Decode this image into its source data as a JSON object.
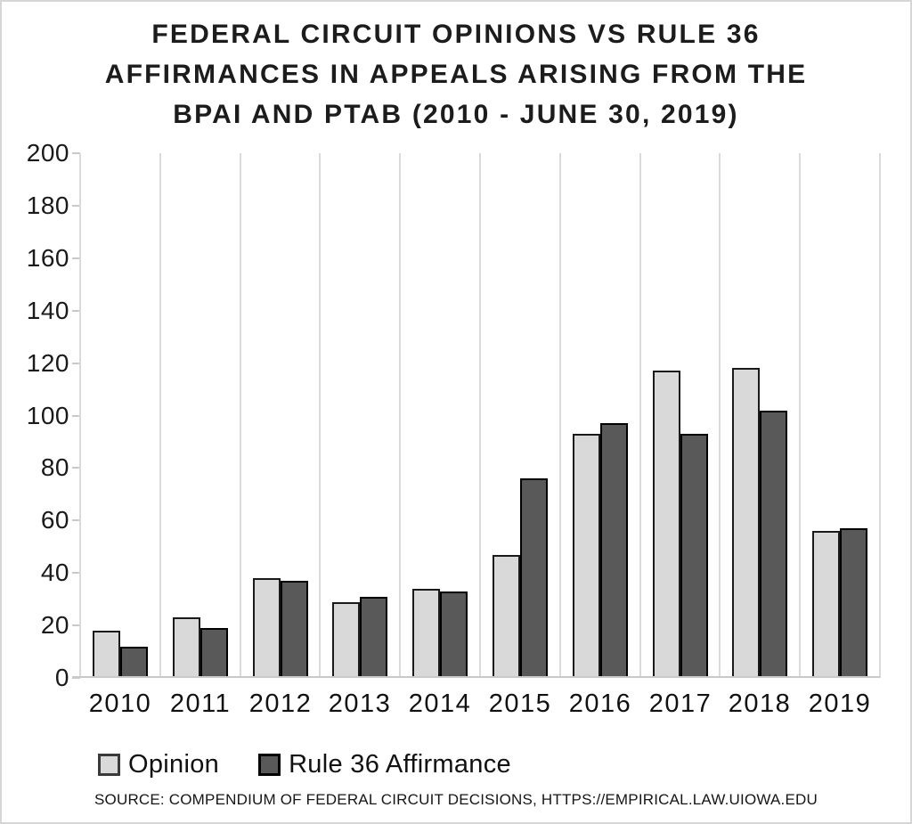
{
  "chart_data": {
    "type": "bar",
    "title": "FEDERAL CIRCUIT OPINIONS VS RULE 36 AFFIRMANCES IN APPEALS ARISING FROM THE BPAI AND PTAB (2010 - JUNE 30, 2019)",
    "title_lines": [
      "FEDERAL CIRCUIT OPINIONS VS RULE 36",
      "AFFIRMANCES IN APPEALS ARISING FROM THE",
      "BPAI AND PTAB (2010 - JUNE 30, 2019)"
    ],
    "categories": [
      "2010",
      "2011",
      "2012",
      "2013",
      "2014",
      "2015",
      "2016",
      "2017",
      "2018",
      "2019"
    ],
    "series": [
      {
        "name": "Opinion",
        "color": "#d9d9d9",
        "values": [
          18,
          23,
          38,
          29,
          34,
          47,
          93,
          117,
          118,
          56
        ]
      },
      {
        "name": "Rule 36 Affirmance",
        "color": "#595959",
        "values": [
          12,
          19,
          37,
          31,
          33,
          76,
          97,
          93,
          102,
          57
        ]
      }
    ],
    "xlabel": "",
    "ylabel": "",
    "ylim": [
      0,
      200
    ],
    "ytick_step": 20,
    "grid": "vertical-category-boundaries",
    "legend_position": "bottom-left"
  },
  "source": {
    "text": "SOURCE: COMPENDIUM OF FEDERAL CIRCUIT DECISIONS, HTTPS://EMPIRICAL.LAW.UIOWA.EDU"
  }
}
